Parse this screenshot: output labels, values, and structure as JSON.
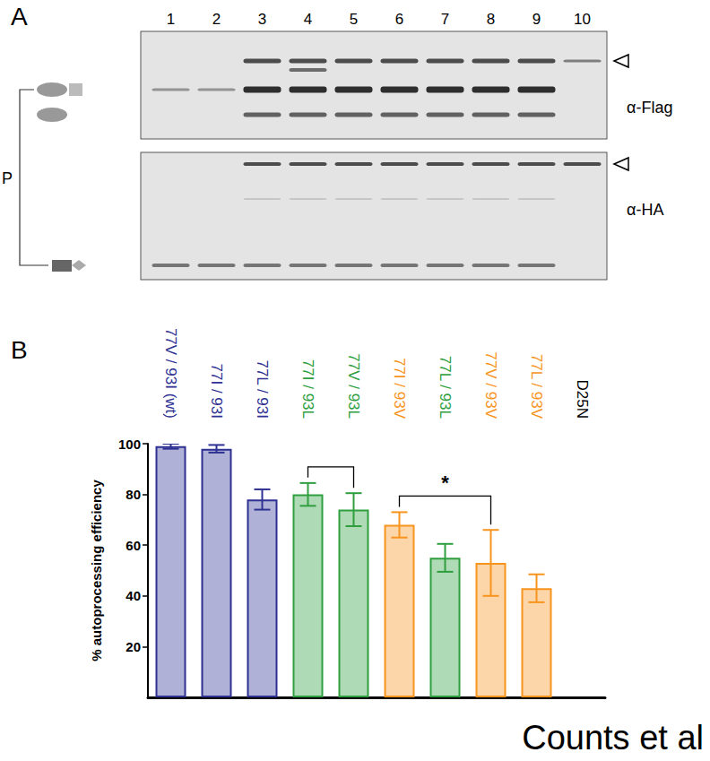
{
  "chart_data": {
    "type": "bar",
    "panel_label": "B",
    "ylabel": "% autoprocessing efficiency",
    "categories": [
      "77V / 93I (wt)",
      "77I / 93I",
      "77L / 93I",
      "77I / 93L",
      "77V / 93L",
      "77I / 93V",
      "77L / 93L",
      "77V / 93V",
      "77L / 93V",
      "D25N"
    ],
    "values": [
      99,
      98,
      78,
      80,
      74,
      68,
      55,
      53,
      43,
      null
    ],
    "errors": [
      1,
      1.5,
      4,
      4.5,
      6.5,
      5,
      5.5,
      13,
      5.5,
      null
    ],
    "colors": [
      "#2e3192",
      "#2e3192",
      "#2e3192",
      "#2e9e3e",
      "#2e9e3e",
      "#f7941d",
      "#2e9e3e",
      "#f7941d",
      "#f7941d",
      "#000000"
    ],
    "ylim": [
      0,
      100
    ],
    "yticks": [
      20,
      40,
      60,
      80,
      100
    ],
    "annotations": [
      {
        "between": [
          "77I / 93L",
          "77V / 93L"
        ]
      },
      {
        "between": [
          "77I / 93V",
          "77V / 93V"
        ],
        "text": "*"
      }
    ]
  },
  "panel_a": {
    "label": "A",
    "lanes": [
      "1",
      "2",
      "3",
      "4",
      "5",
      "6",
      "7",
      "8",
      "9",
      "10"
    ],
    "blots": [
      "α-Flag",
      "α-HA"
    ],
    "bracket_label": "P"
  },
  "footer": "Counts et al"
}
